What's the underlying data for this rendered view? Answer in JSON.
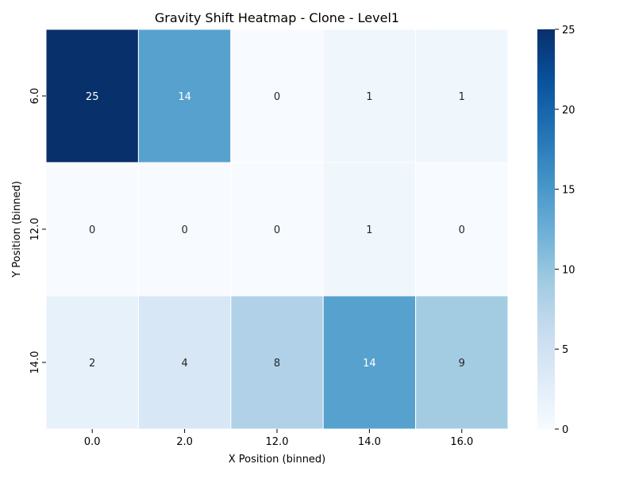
{
  "chart_data": {
    "type": "heatmap",
    "title": "Gravity Shift Heatmap - Clone - Level1",
    "xlabel": "X Position (binned)",
    "ylabel": "Y Position (binned)",
    "x_categories": [
      "0.0",
      "2.0",
      "12.0",
      "14.0",
      "16.0"
    ],
    "y_categories": [
      "6.0",
      "12.0",
      "14.0"
    ],
    "values": [
      [
        25,
        14,
        0,
        1,
        1
      ],
      [
        0,
        0,
        0,
        1,
        0
      ],
      [
        2,
        4,
        8,
        14,
        9
      ]
    ],
    "colorbar": {
      "min": 0,
      "max": 25,
      "ticks": [
        "0",
        "5",
        "10",
        "15",
        "20",
        "25"
      ]
    },
    "colormap": "Blues",
    "colors": {
      "low": "#f7fbff",
      "high": "#08306b",
      "cell_border": "#ffffff"
    }
  }
}
